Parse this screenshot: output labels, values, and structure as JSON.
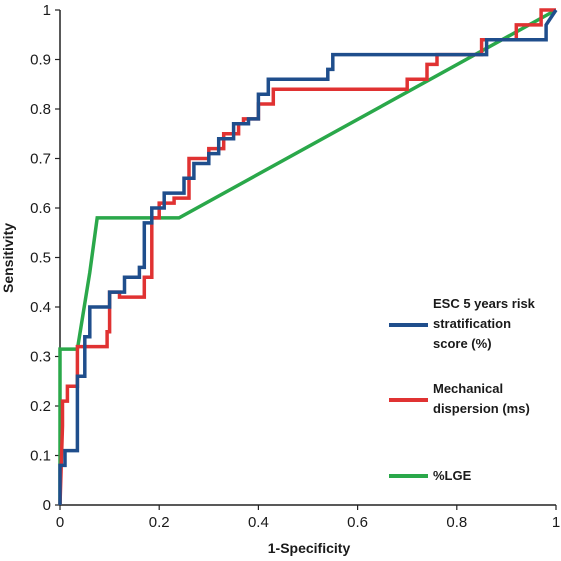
{
  "chart_data": {
    "type": "line",
    "xlabel": "1-Specificity",
    "ylabel": "Sensitivity",
    "xlim": [
      0,
      1
    ],
    "ylim": [
      0,
      1
    ],
    "x_ticks": [
      "0",
      "0.2",
      "0.4",
      "0.6",
      "0.8",
      "1"
    ],
    "y_ticks": [
      "0",
      "0.1",
      "0.2",
      "0.3",
      "0.4",
      "0.5",
      "0.6",
      "0.7",
      "0.8",
      "0.9",
      "1"
    ],
    "legend_position": "right",
    "grid": false,
    "series": [
      {
        "name": [
          "ESC 5 years risk",
          "stratification",
          "score (%)"
        ],
        "color": "#1f4e8c",
        "points": [
          [
            0,
            0
          ],
          [
            0,
            0.08
          ],
          [
            0.01,
            0.08
          ],
          [
            0.01,
            0.11
          ],
          [
            0.035,
            0.11
          ],
          [
            0.035,
            0.26
          ],
          [
            0.05,
            0.26
          ],
          [
            0.05,
            0.34
          ],
          [
            0.06,
            0.34
          ],
          [
            0.06,
            0.4
          ],
          [
            0.1,
            0.4
          ],
          [
            0.1,
            0.43
          ],
          [
            0.13,
            0.43
          ],
          [
            0.13,
            0.46
          ],
          [
            0.16,
            0.46
          ],
          [
            0.16,
            0.48
          ],
          [
            0.17,
            0.48
          ],
          [
            0.17,
            0.57
          ],
          [
            0.185,
            0.57
          ],
          [
            0.185,
            0.6
          ],
          [
            0.21,
            0.6
          ],
          [
            0.21,
            0.63
          ],
          [
            0.25,
            0.63
          ],
          [
            0.25,
            0.66
          ],
          [
            0.27,
            0.66
          ],
          [
            0.27,
            0.69
          ],
          [
            0.3,
            0.69
          ],
          [
            0.3,
            0.71
          ],
          [
            0.32,
            0.71
          ],
          [
            0.32,
            0.74
          ],
          [
            0.35,
            0.74
          ],
          [
            0.35,
            0.77
          ],
          [
            0.38,
            0.77
          ],
          [
            0.38,
            0.78
          ],
          [
            0.4,
            0.78
          ],
          [
            0.4,
            0.83
          ],
          [
            0.42,
            0.83
          ],
          [
            0.42,
            0.86
          ],
          [
            0.54,
            0.86
          ],
          [
            0.54,
            0.88
          ],
          [
            0.55,
            0.88
          ],
          [
            0.55,
            0.91
          ],
          [
            0.86,
            0.91
          ],
          [
            0.86,
            0.94
          ],
          [
            0.98,
            0.94
          ],
          [
            0.98,
            0.97
          ],
          [
            1,
            1
          ]
        ]
      },
      {
        "name": [
          "Mechanical",
          "dispersion (ms)"
        ],
        "color": "#e03232",
        "points": [
          [
            0,
            0
          ],
          [
            0.005,
            0.16
          ],
          [
            0.005,
            0.21
          ],
          [
            0.015,
            0.21
          ],
          [
            0.015,
            0.24
          ],
          [
            0.035,
            0.24
          ],
          [
            0.035,
            0.32
          ],
          [
            0.095,
            0.32
          ],
          [
            0.095,
            0.35
          ],
          [
            0.1,
            0.35
          ],
          [
            0.1,
            0.43
          ],
          [
            0.12,
            0.43
          ],
          [
            0.12,
            0.42
          ],
          [
            0.17,
            0.42
          ],
          [
            0.17,
            0.46
          ],
          [
            0.185,
            0.46
          ],
          [
            0.185,
            0.58
          ],
          [
            0.2,
            0.58
          ],
          [
            0.2,
            0.61
          ],
          [
            0.23,
            0.61
          ],
          [
            0.23,
            0.62
          ],
          [
            0.26,
            0.62
          ],
          [
            0.26,
            0.7
          ],
          [
            0.3,
            0.7
          ],
          [
            0.3,
            0.72
          ],
          [
            0.33,
            0.72
          ],
          [
            0.33,
            0.75
          ],
          [
            0.36,
            0.75
          ],
          [
            0.36,
            0.77
          ],
          [
            0.37,
            0.77
          ],
          [
            0.37,
            0.78
          ],
          [
            0.4,
            0.78
          ],
          [
            0.4,
            0.81
          ],
          [
            0.43,
            0.81
          ],
          [
            0.43,
            0.84
          ],
          [
            0.7,
            0.84
          ],
          [
            0.7,
            0.86
          ],
          [
            0.74,
            0.86
          ],
          [
            0.74,
            0.89
          ],
          [
            0.76,
            0.89
          ],
          [
            0.76,
            0.91
          ],
          [
            0.85,
            0.91
          ],
          [
            0.85,
            0.94
          ],
          [
            0.92,
            0.94
          ],
          [
            0.92,
            0.97
          ],
          [
            0.97,
            0.97
          ],
          [
            0.97,
            1.0
          ],
          [
            1,
            1
          ]
        ]
      },
      {
        "name": [
          "%LGE"
        ],
        "color": "#2aa84a",
        "points": [
          [
            0,
            0
          ],
          [
            0,
            0.315
          ],
          [
            0.035,
            0.315
          ],
          [
            0.06,
            0.47
          ],
          [
            0.075,
            0.58
          ],
          [
            0.24,
            0.58
          ],
          [
            1,
            1
          ]
        ]
      }
    ]
  }
}
